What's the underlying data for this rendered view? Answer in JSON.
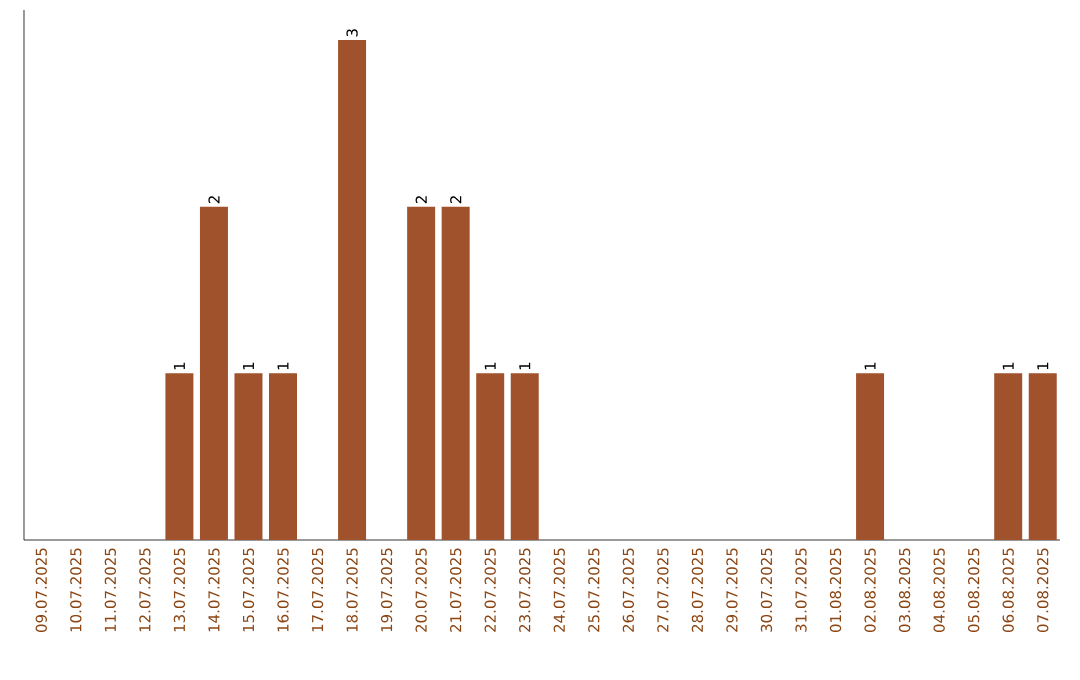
{
  "chart_data": {
    "type": "bar",
    "categories": [
      "09.07.2025",
      "10.07.2025",
      "11.07.2025",
      "12.07.2025",
      "13.07.2025",
      "14.07.2025",
      "15.07.2025",
      "16.07.2025",
      "17.07.2025",
      "18.07.2025",
      "19.07.2025",
      "20.07.2025",
      "21.07.2025",
      "22.07.2025",
      "23.07.2025",
      "24.07.2025",
      "25.07.2025",
      "26.07.2025",
      "27.07.2025",
      "28.07.2025",
      "29.07.2025",
      "30.07.2025",
      "31.07.2025",
      "01.08.2025",
      "02.08.2025",
      "03.08.2025",
      "04.08.2025",
      "05.08.2025",
      "06.08.2025",
      "07.08.2025"
    ],
    "values": [
      0,
      0,
      0,
      0,
      1,
      2,
      1,
      1,
      0,
      3,
      0,
      2,
      2,
      1,
      1,
      0,
      0,
      0,
      0,
      0,
      0,
      0,
      0,
      0,
      1,
      0,
      0,
      0,
      1,
      1
    ],
    "value_labels": [
      null,
      null,
      null,
      null,
      "1",
      "2",
      "1",
      "1",
      null,
      "3",
      null,
      "2",
      "2",
      "1",
      "1",
      null,
      null,
      null,
      null,
      null,
      null,
      null,
      null,
      null,
      "1",
      null,
      null,
      null,
      "1",
      "1"
    ],
    "color": "#a0522d"
  }
}
